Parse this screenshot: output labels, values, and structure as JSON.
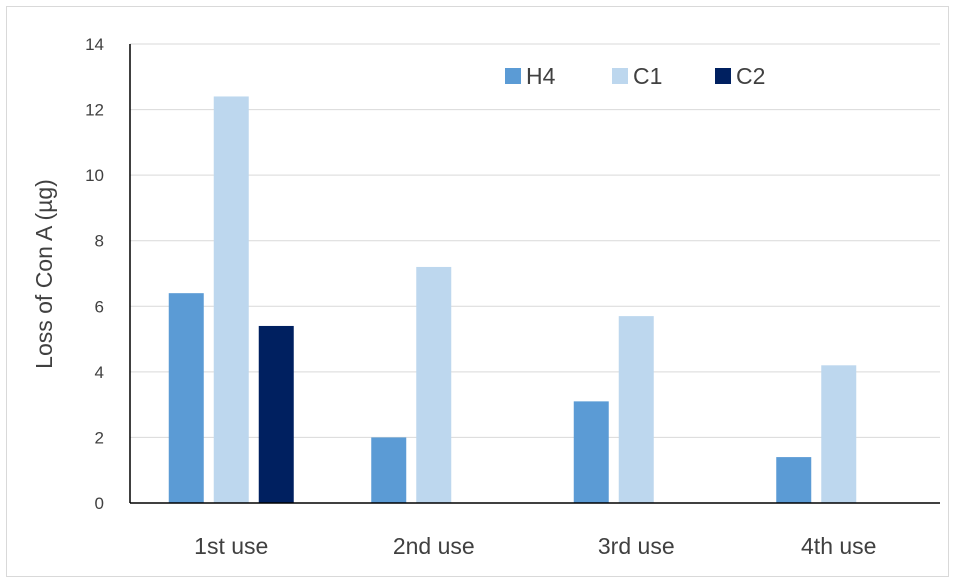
{
  "chart_data": {
    "type": "bar",
    "title": "",
    "xlabel": "",
    "ylabel": "Loss of Con A (µg)",
    "categories": [
      "1st use",
      "2nd use",
      "3rd use",
      "4th use"
    ],
    "series": [
      {
        "name": "H4",
        "color": "#5b9bd5",
        "values": [
          6.4,
          2.0,
          3.1,
          1.4
        ]
      },
      {
        "name": "C1",
        "color": "#bdd7ee",
        "values": [
          12.4,
          7.2,
          5.7,
          4.2
        ]
      },
      {
        "name": "C2",
        "color": "#002060",
        "values": [
          5.4,
          null,
          null,
          null
        ]
      }
    ],
    "ylim": [
      0,
      14
    ],
    "yticks": [
      0,
      2,
      4,
      6,
      8,
      10,
      12,
      14
    ],
    "grid": true,
    "legend_position": "top-right"
  }
}
